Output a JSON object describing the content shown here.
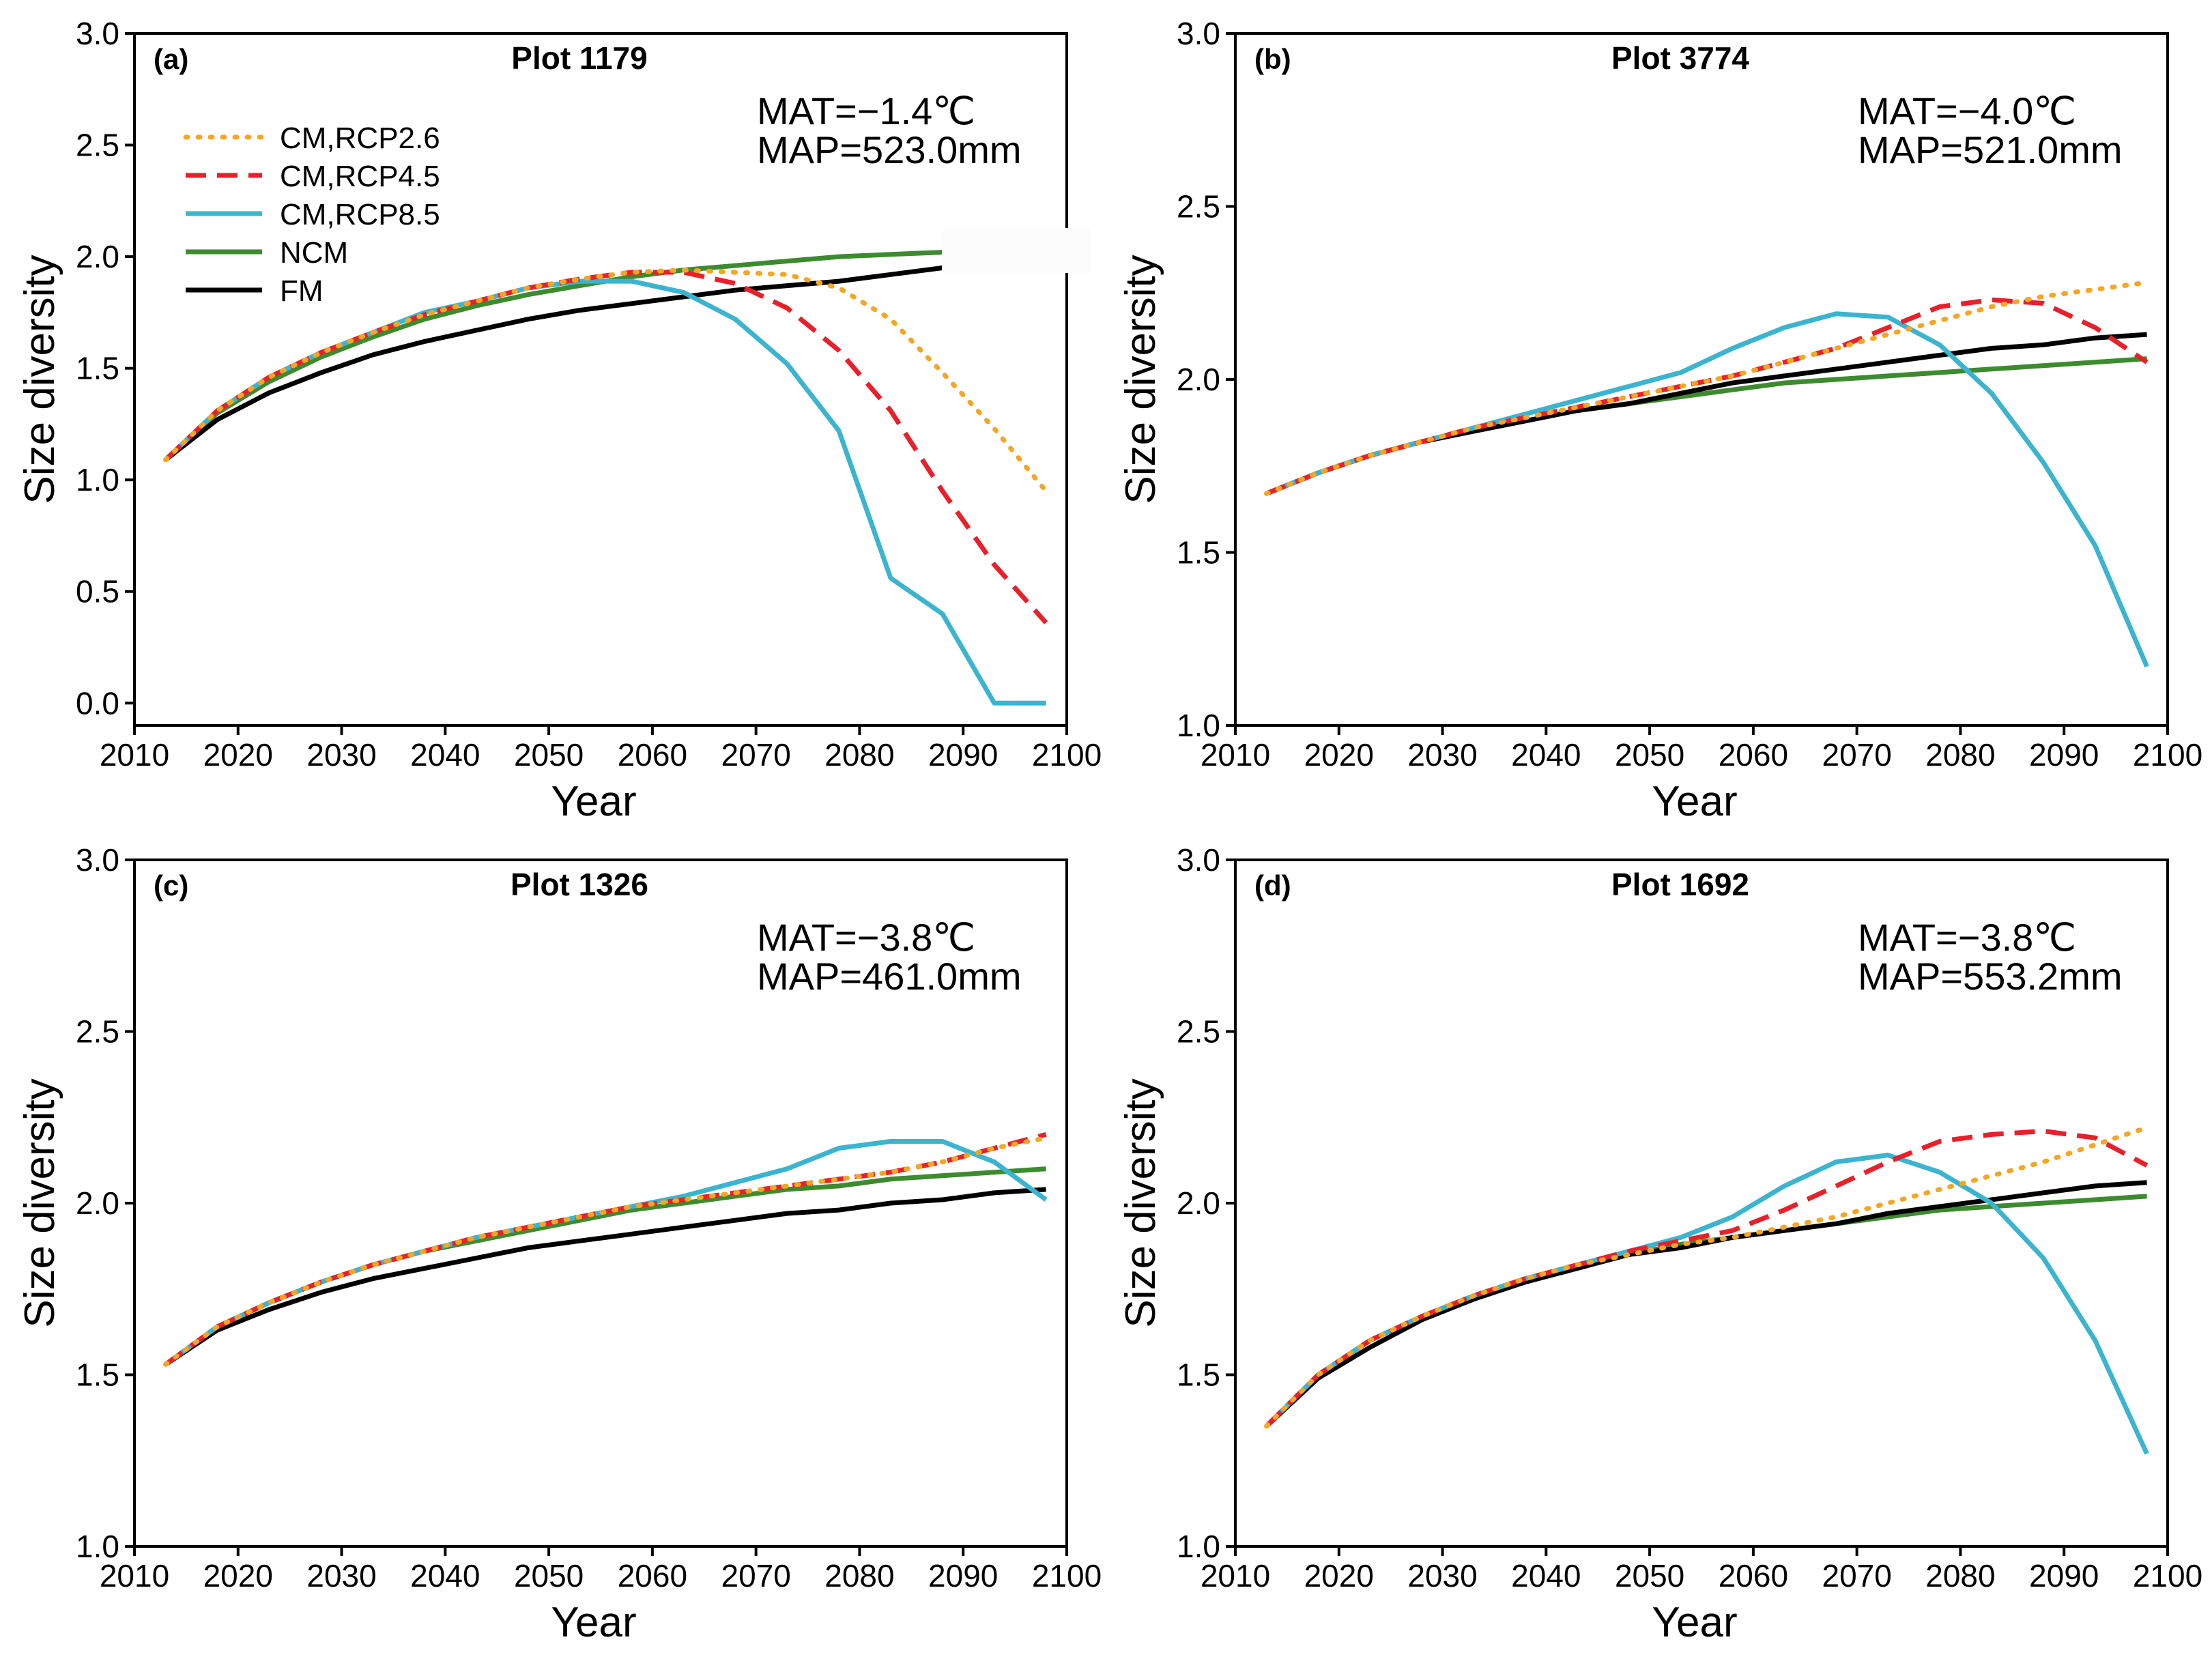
{
  "figure": {
    "legend_position": "top-left of panel (a)"
  },
  "legend": {
    "entries": [
      {
        "key": "rcp26",
        "label": "CM,RCP2.6",
        "color": "#f5a623",
        "dash": "dotted"
      },
      {
        "key": "rcp45",
        "label": "CM,RCP4.5",
        "color": "#e8202a",
        "dash": "dashed"
      },
      {
        "key": "rcp85",
        "label": "CM,RCP8.5",
        "color": "#3bb4cf",
        "dash": "solid"
      },
      {
        "key": "ncm",
        "label": "NCM",
        "color": "#3d8b2f",
        "dash": "solid"
      },
      {
        "key": "fm",
        "label": "FM",
        "color": "#000000",
        "dash": "solid"
      }
    ]
  },
  "chart_data": [
    {
      "type": "line",
      "panel_label": "(a)",
      "title": "Plot 1179",
      "annotation": {
        "mat": "MAT=−1.4℃",
        "map": "MAP=523.0mm"
      },
      "xlabel": "Year",
      "ylabel": "Size diversity",
      "xlim": [
        2010,
        2100
      ],
      "ylim": [
        -0.1,
        3.0
      ],
      "xticks": [
        2010,
        2020,
        2030,
        2040,
        2050,
        2060,
        2070,
        2080,
        2090,
        2100
      ],
      "xtick_labels": [
        "2010",
        "2020",
        "2030",
        "2040",
        "2050",
        "2060",
        "2070",
        "2080",
        "2090",
        "2100"
      ],
      "yticks": [
        0.0,
        0.5,
        1.0,
        1.5,
        2.0,
        2.5,
        3.0
      ],
      "ytick_labels": [
        "0.0",
        "0.5",
        "1.0",
        "1.5",
        "2.0",
        "2.5",
        "3.0"
      ],
      "x": [
        2013,
        2018,
        2023,
        2028,
        2033,
        2038,
        2043,
        2048,
        2053,
        2058,
        2063,
        2068,
        2073,
        2078,
        2083,
        2088,
        2093,
        2098
      ],
      "series": [
        {
          "key": "rcp26",
          "values": [
            1.09,
            1.31,
            1.46,
            1.57,
            1.66,
            1.74,
            1.8,
            1.86,
            1.9,
            1.93,
            1.94,
            1.93,
            1.92,
            1.86,
            1.72,
            1.48,
            1.23,
            0.95
          ]
        },
        {
          "key": "rcp45",
          "values": [
            1.09,
            1.31,
            1.46,
            1.57,
            1.66,
            1.74,
            1.8,
            1.86,
            1.9,
            1.93,
            1.93,
            1.88,
            1.77,
            1.58,
            1.31,
            0.95,
            0.62,
            0.36
          ]
        },
        {
          "key": "rcp85",
          "values": [
            1.09,
            1.31,
            1.46,
            1.57,
            1.66,
            1.75,
            1.8,
            1.86,
            1.89,
            1.89,
            1.84,
            1.72,
            1.52,
            1.22,
            0.56,
            0.4,
            0.0,
            0.0
          ]
        },
        {
          "key": "ncm",
          "values": [
            1.09,
            1.3,
            1.44,
            1.55,
            1.64,
            1.72,
            1.78,
            1.83,
            1.87,
            1.91,
            1.94,
            1.96,
            1.98,
            2.0,
            2.01,
            2.02,
            null,
            null
          ]
        },
        {
          "key": "fm",
          "values": [
            1.09,
            1.27,
            1.39,
            1.48,
            1.56,
            1.62,
            1.67,
            1.72,
            1.76,
            1.79,
            1.82,
            1.85,
            1.87,
            1.89,
            1.92,
            1.95,
            null,
            null
          ]
        }
      ]
    },
    {
      "type": "line",
      "panel_label": "(b)",
      "title": "Plot 3774",
      "annotation": {
        "mat": "MAT=−4.0℃",
        "map": "MAP=521.0mm"
      },
      "xlabel": "Year",
      "ylabel": "Size diversity",
      "xlim": [
        2010,
        2100
      ],
      "ylim": [
        1.0,
        3.0
      ],
      "xticks": [
        2010,
        2020,
        2030,
        2040,
        2050,
        2060,
        2070,
        2080,
        2090,
        2100
      ],
      "xtick_labels": [
        "2010",
        "2020",
        "2030",
        "2040",
        "2050",
        "2060",
        "2070",
        "2080",
        "2090",
        "2100"
      ],
      "yticks": [
        1.0,
        1.5,
        2.0,
        2.5,
        3.0
      ],
      "ytick_labels": [
        "1.0",
        "1.5",
        "2.0",
        "2.5",
        "3.0"
      ],
      "x": [
        2013,
        2018,
        2023,
        2028,
        2033,
        2038,
        2043,
        2048,
        2053,
        2058,
        2063,
        2068,
        2073,
        2078,
        2083,
        2088,
        2093,
        2098
      ],
      "series": [
        {
          "key": "rcp26",
          "values": [
            1.67,
            1.73,
            1.78,
            1.82,
            1.86,
            1.89,
            1.92,
            1.95,
            1.98,
            2.01,
            2.05,
            2.09,
            2.13,
            2.17,
            2.21,
            2.24,
            2.26,
            2.28
          ]
        },
        {
          "key": "rcp45",
          "values": [
            1.67,
            1.73,
            1.78,
            1.82,
            1.86,
            1.89,
            1.92,
            1.95,
            1.98,
            2.01,
            2.05,
            2.09,
            2.15,
            2.21,
            2.23,
            2.22,
            2.15,
            2.05
          ]
        },
        {
          "key": "rcp85",
          "values": [
            1.67,
            1.73,
            1.78,
            1.82,
            1.86,
            1.9,
            1.94,
            1.98,
            2.02,
            2.09,
            2.15,
            2.19,
            2.18,
            2.1,
            1.96,
            1.76,
            1.52,
            1.17
          ]
        },
        {
          "key": "ncm",
          "values": [
            1.67,
            1.73,
            1.78,
            1.82,
            1.85,
            1.88,
            1.91,
            1.93,
            1.95,
            1.97,
            1.99,
            2.0,
            2.01,
            2.02,
            2.03,
            2.04,
            2.05,
            2.06
          ]
        },
        {
          "key": "fm",
          "values": [
            1.67,
            1.73,
            1.78,
            1.82,
            1.85,
            1.88,
            1.91,
            1.93,
            1.96,
            1.99,
            2.01,
            2.03,
            2.05,
            2.07,
            2.09,
            2.1,
            2.12,
            2.13
          ]
        }
      ]
    },
    {
      "type": "line",
      "panel_label": "(c)",
      "title": "Plot 1326",
      "annotation": {
        "mat": "MAT=−3.8℃",
        "map": "MAP=461.0mm"
      },
      "xlabel": "Year",
      "ylabel": "Size diversity",
      "xlim": [
        2010,
        2100
      ],
      "ylim": [
        1.0,
        3.0
      ],
      "xticks": [
        2010,
        2020,
        2030,
        2040,
        2050,
        2060,
        2070,
        2080,
        2090,
        2100
      ],
      "xtick_labels": [
        "2010",
        "2020",
        "2030",
        "2040",
        "2050",
        "2060",
        "2070",
        "2080",
        "2090",
        "2100"
      ],
      "yticks": [
        1.0,
        1.5,
        2.0,
        2.5,
        3.0
      ],
      "ytick_labels": [
        "1.0",
        "1.5",
        "2.0",
        "2.5",
        "3.0"
      ],
      "x": [
        2013,
        2018,
        2023,
        2028,
        2033,
        2038,
        2043,
        2048,
        2053,
        2058,
        2063,
        2068,
        2073,
        2078,
        2083,
        2088,
        2093,
        2098
      ],
      "series": [
        {
          "key": "rcp26",
          "values": [
            1.53,
            1.64,
            1.71,
            1.77,
            1.82,
            1.86,
            1.9,
            1.93,
            1.96,
            1.99,
            2.01,
            2.03,
            2.05,
            2.07,
            2.09,
            2.12,
            2.16,
            2.19
          ]
        },
        {
          "key": "rcp45",
          "values": [
            1.53,
            1.64,
            1.71,
            1.77,
            1.82,
            1.86,
            1.9,
            1.93,
            1.96,
            1.99,
            2.01,
            2.03,
            2.05,
            2.07,
            2.09,
            2.12,
            2.16,
            2.2
          ]
        },
        {
          "key": "rcp85",
          "values": [
            1.53,
            1.64,
            1.71,
            1.77,
            1.82,
            1.86,
            1.9,
            1.93,
            1.96,
            1.99,
            2.02,
            2.06,
            2.1,
            2.16,
            2.18,
            2.18,
            2.12,
            2.01
          ]
        },
        {
          "key": "ncm",
          "values": [
            1.53,
            1.64,
            1.71,
            1.77,
            1.82,
            1.86,
            1.89,
            1.92,
            1.95,
            1.98,
            2.0,
            2.02,
            2.04,
            2.05,
            2.07,
            2.08,
            2.09,
            2.1
          ]
        },
        {
          "key": "fm",
          "values": [
            1.53,
            1.63,
            1.69,
            1.74,
            1.78,
            1.81,
            1.84,
            1.87,
            1.89,
            1.91,
            1.93,
            1.95,
            1.97,
            1.98,
            2.0,
            2.01,
            2.03,
            2.04
          ]
        }
      ]
    },
    {
      "type": "line",
      "panel_label": "(d)",
      "title": "Plot 1692",
      "annotation": {
        "mat": "MAT=−3.8℃",
        "map": "MAP=553.2mm"
      },
      "xlabel": "Year",
      "ylabel": "Size diversity",
      "xlim": [
        2010,
        2100
      ],
      "ylim": [
        1.0,
        3.0
      ],
      "xticks": [
        2010,
        2020,
        2030,
        2040,
        2050,
        2060,
        2070,
        2080,
        2090,
        2100
      ],
      "xtick_labels": [
        "2010",
        "2020",
        "2030",
        "2040",
        "2050",
        "2060",
        "2070",
        "2080",
        "2090",
        "2100"
      ],
      "yticks": [
        1.0,
        1.5,
        2.0,
        2.5,
        3.0
      ],
      "ytick_labels": [
        "1.0",
        "1.5",
        "2.0",
        "2.5",
        "3.0"
      ],
      "x": [
        2013,
        2018,
        2023,
        2028,
        2033,
        2038,
        2043,
        2048,
        2053,
        2058,
        2063,
        2068,
        2073,
        2078,
        2083,
        2088,
        2093,
        2098
      ],
      "series": [
        {
          "key": "rcp26",
          "values": [
            1.35,
            1.5,
            1.6,
            1.67,
            1.73,
            1.78,
            1.82,
            1.85,
            1.88,
            1.9,
            1.93,
            1.96,
            2.0,
            2.04,
            2.08,
            2.12,
            2.17,
            2.22
          ]
        },
        {
          "key": "rcp45",
          "values": [
            1.35,
            1.5,
            1.6,
            1.67,
            1.73,
            1.78,
            1.82,
            1.86,
            1.89,
            1.92,
            1.98,
            2.05,
            2.12,
            2.18,
            2.2,
            2.21,
            2.19,
            2.11
          ]
        },
        {
          "key": "rcp85",
          "values": [
            1.35,
            1.5,
            1.6,
            1.67,
            1.73,
            1.78,
            1.82,
            1.86,
            1.9,
            1.96,
            2.05,
            2.12,
            2.14,
            2.09,
            2.0,
            1.84,
            1.6,
            1.27
          ]
        },
        {
          "key": "ncm",
          "values": [
            1.35,
            1.5,
            1.6,
            1.67,
            1.73,
            1.78,
            1.82,
            1.85,
            1.88,
            1.9,
            1.92,
            1.94,
            1.96,
            1.98,
            1.99,
            2.0,
            2.01,
            2.02
          ]
        },
        {
          "key": "fm",
          "values": [
            1.35,
            1.49,
            1.58,
            1.66,
            1.72,
            1.77,
            1.81,
            1.85,
            1.87,
            1.9,
            1.92,
            1.94,
            1.97,
            1.99,
            2.01,
            2.03,
            2.05,
            2.06
          ]
        }
      ]
    }
  ]
}
